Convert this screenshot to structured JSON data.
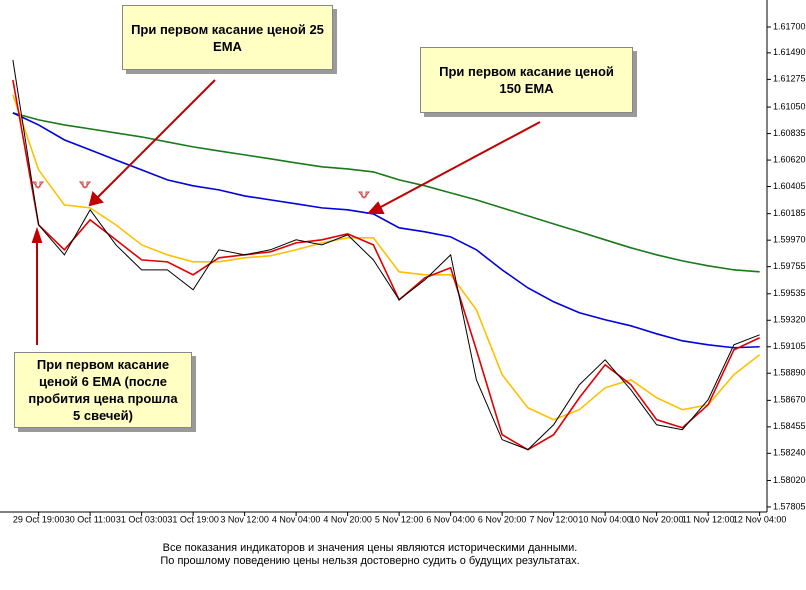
{
  "chart_data": {
    "type": "line",
    "categories": [
      null,
      "29 Oct 19:00",
      null,
      "30 Oct 11:00",
      null,
      "31 Oct 03:00",
      null,
      "31 Oct 19:00",
      null,
      "3 Nov 12:00",
      null,
      "4 Nov 04:00",
      null,
      "4 Nov 20:00",
      null,
      "5 Nov 12:00",
      null,
      "6 Nov 04:00",
      null,
      "6 Nov 20:00",
      null,
      "7 Nov 12:00",
      null,
      "10 Nov 04:00",
      null,
      "10 Nov 20:00",
      null,
      "11 Nov 12:00",
      null,
      "12 Nov 04:00"
    ],
    "series": [
      {
        "color": "#000000",
        "values": [
          1.61432,
          1.60094,
          1.59851,
          1.60216,
          1.59932,
          1.59729,
          1.59729,
          1.59567,
          1.59892,
          1.59851,
          1.59892,
          1.59973,
          1.59932,
          1.60013,
          1.5981,
          1.59486,
          1.59648,
          1.59851,
          1.58837,
          1.58351,
          1.5827,
          1.58472,
          1.58797,
          1.58999,
          1.58756,
          1.58472,
          1.58432,
          1.58675,
          1.59121,
          1.59202
        ]
      },
      {
        "color": "#e00000",
        "values": [
          1.6127,
          1.60094,
          1.59892,
          1.60135,
          1.59973,
          1.5981,
          1.59794,
          1.59689,
          1.59827,
          1.59851,
          1.59875,
          1.59948,
          1.59973,
          1.60021,
          1.59932,
          1.59486,
          1.59664,
          1.59746,
          1.5908,
          1.58391,
          1.5827,
          1.58391,
          1.58691,
          1.58959,
          1.58797,
          1.58513,
          1.58448,
          1.58634,
          1.5908,
          1.59178
        ]
      },
      {
        "color": "#ffc000",
        "values": [
          1.61149,
          1.6054,
          1.60256,
          1.60232,
          1.60094,
          1.59932,
          1.59851,
          1.59794,
          1.59794,
          1.59827,
          1.59843,
          1.59892,
          1.59948,
          1.59989,
          1.59989,
          1.59713,
          1.59689,
          1.59689,
          1.59405,
          1.58878,
          1.5861,
          1.58513,
          1.58594,
          1.58772,
          1.58837,
          1.58691,
          1.58594,
          1.58634,
          1.58878,
          1.5904
        ]
      },
      {
        "color": "#0000e0",
        "values": [
          1.61003,
          1.60905,
          1.60784,
          1.60703,
          1.60621,
          1.6054,
          1.60459,
          1.60411,
          1.60378,
          1.60329,
          1.60297,
          1.60265,
          1.60232,
          1.60216,
          1.60183,
          1.6007,
          1.60038,
          1.59997,
          1.59892,
          1.59729,
          1.59583,
          1.5947,
          1.59381,
          1.59324,
          1.59275,
          1.5921,
          1.59153,
          1.59121,
          1.59097,
          1.59105
        ]
      },
      {
        "color": "#1a7a1a",
        "values": [
          1.61003,
          1.60946,
          1.60905,
          1.60873,
          1.6084,
          1.60808,
          1.60767,
          1.60727,
          1.60694,
          1.60662,
          1.6063,
          1.60597,
          1.60565,
          1.60548,
          1.60524,
          1.60459,
          1.60411,
          1.60354,
          1.60297,
          1.60232,
          1.60167,
          1.60102,
          1.60038,
          1.59973,
          1.59908,
          1.59851,
          1.59802,
          1.59762,
          1.59729,
          1.59713
        ]
      }
    ],
    "ylim": [
      1.57764,
      1.61919
    ],
    "yticks": [
      {
        "value": 1.617,
        "label": "1.61700"
      },
      {
        "value": 1.6149,
        "label": "1.61490"
      },
      {
        "value": 1.61275,
        "label": "1.61275"
      },
      {
        "value": 1.6105,
        "label": "1.61050"
      },
      {
        "value": 1.60835,
        "label": "1.60835"
      },
      {
        "value": 1.6062,
        "label": "1.60620"
      },
      {
        "value": 1.60405,
        "label": "1.60405"
      },
      {
        "value": 1.60185,
        "label": "1.60185"
      },
      {
        "value": 1.5997,
        "label": "1.59970"
      },
      {
        "value": 1.59755,
        "label": "1.59755"
      },
      {
        "value": 1.59535,
        "label": "1.59535"
      },
      {
        "value": 1.5932,
        "label": "1.59320"
      },
      {
        "value": 1.59105,
        "label": "1.59105"
      },
      {
        "value": 1.5889,
        "label": "1.58890"
      },
      {
        "value": 1.5867,
        "label": "1.58670"
      },
      {
        "value": 1.58455,
        "label": "1.58455"
      },
      {
        "value": 1.5824,
        "label": "1.58240"
      },
      {
        "value": 1.5802,
        "label": "1.58020"
      },
      {
        "value": 1.57805,
        "label": "1.57805"
      }
    ],
    "annotations": [
      "При первом касание ценой 25 EMA",
      "При первом касание ценой 150 EMA",
      "При первом касание ценой 6 EMA (после пробития цена прошла 5 свечей)"
    ],
    "disclaimer": [
      "Все показания индикаторов и значения цены являются историческими данными.",
      "По прошлому поведению цены нельзя достоверно судить о будущих результатах."
    ]
  }
}
